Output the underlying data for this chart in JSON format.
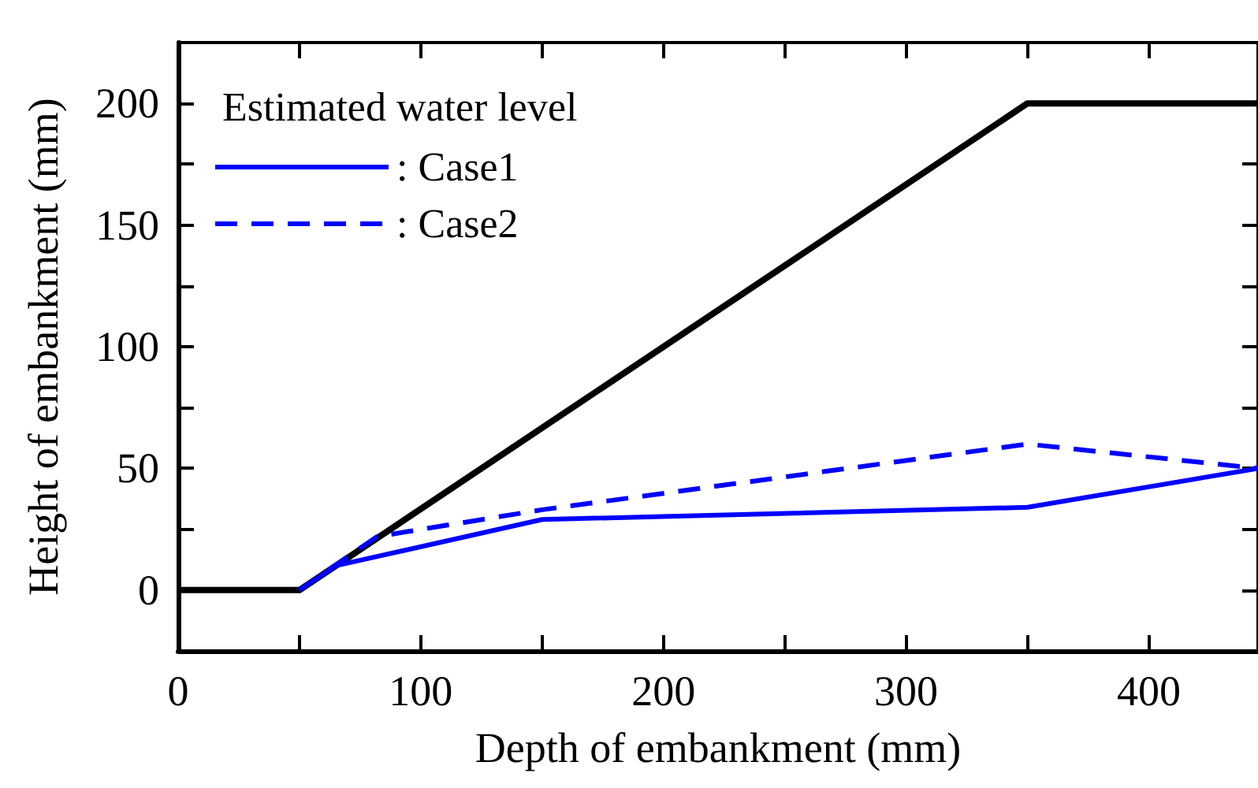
{
  "chart_data": {
    "type": "line",
    "xlabel": "Depth of embankment (mm)",
    "ylabel": "Height of embankment (mm)",
    "legend_title": "Estimated water level",
    "xlim": [
      0,
      445
    ],
    "ylim": [
      -25,
      225
    ],
    "xticks": [
      0,
      {
        "value": 50,
        "label": null
      },
      100,
      {
        "value": 150,
        "label": null
      },
      200,
      {
        "value": 250,
        "label": null
      },
      300,
      {
        "value": 350,
        "label": null
      },
      400
    ],
    "yticks": [
      0,
      {
        "value": 25,
        "label": null
      },
      50,
      {
        "value": 75,
        "label": null
      },
      100,
      {
        "value": 125,
        "label": null
      },
      150,
      {
        "value": 175,
        "label": null
      },
      200
    ],
    "grid": false,
    "legend": "top left",
    "marker": "none",
    "series": [
      {
        "color": "#000000",
        "line_style": "solid",
        "x": [
          0,
          50,
          350,
          445
        ],
        "values": [
          0,
          0,
          200,
          200
        ]
      },
      {
        "name": ": Case1",
        "color": "#0000ff",
        "line_style": "solid",
        "x": [
          50,
          65,
          150,
          350,
          445
        ],
        "values": [
          0,
          10,
          29,
          34,
          50
        ]
      },
      {
        "name": ": Case2",
        "color": "#0000ff",
        "line_style": "dashed",
        "x": [
          50,
          82,
          150,
          350,
          445
        ],
        "values": [
          0,
          22,
          33,
          60,
          50
        ]
      }
    ]
  }
}
